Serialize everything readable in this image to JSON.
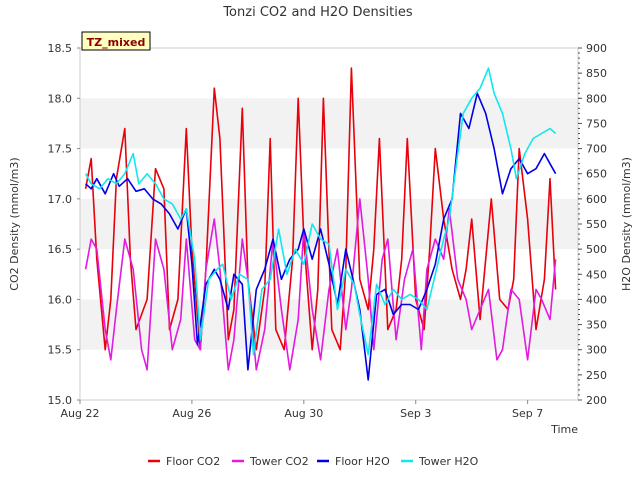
{
  "chart_data": {
    "type": "line",
    "title": "Tonzi CO2 and H2O Densities",
    "xlabel": "Time",
    "ylabel_left": "CO2 Density (mmol/m3)",
    "ylabel_right": "H2O Density (mmol/m3)",
    "site_label": "TZ_mixed",
    "x_ticks": [
      "Aug 22",
      "Aug 26",
      "Aug 30",
      "Sep 3",
      "Sep 7"
    ],
    "x_tick_days": [
      0,
      4,
      8,
      12,
      16
    ],
    "xlim": [
      0,
      17.8
    ],
    "ylim_left": [
      15.0,
      18.5
    ],
    "left_ticks": [
      "15.0",
      "15.5",
      "16.0",
      "16.5",
      "17.0",
      "17.5",
      "18.0",
      "18.5"
    ],
    "ylim_right": [
      200,
      900
    ],
    "right_ticks": [
      "200",
      "250",
      "300",
      "350",
      "400",
      "450",
      "500",
      "550",
      "600",
      "650",
      "700",
      "750",
      "800",
      "850",
      "900"
    ],
    "grid": "horizontal bands",
    "legend_position": "bottom",
    "series": [
      {
        "name": "Floor CO2",
        "axis": "left",
        "color": "#e8000b",
        "x": [
          0.2,
          0.4,
          0.6,
          0.9,
          1.1,
          1.3,
          1.6,
          1.8,
          2.0,
          2.4,
          2.7,
          3.0,
          3.2,
          3.5,
          3.8,
          4.0,
          4.3,
          4.5,
          4.8,
          5.0,
          5.3,
          5.5,
          5.8,
          6.0,
          6.3,
          6.6,
          6.8,
          7.0,
          7.3,
          7.6,
          7.8,
          8.0,
          8.3,
          8.5,
          8.7,
          9.0,
          9.3,
          9.5,
          9.7,
          10.0,
          10.3,
          10.5,
          10.7,
          11.0,
          11.3,
          11.5,
          11.7,
          12.0,
          12.3,
          12.5,
          12.7,
          13.0,
          13.3,
          13.6,
          13.8,
          14.0,
          14.3,
          14.5,
          14.7,
          15.0,
          15.3,
          15.5,
          15.7,
          16.0,
          16.3,
          16.6,
          16.8,
          17.0
        ],
        "values": [
          17.1,
          17.4,
          16.4,
          15.5,
          16.0,
          17.2,
          17.7,
          16.4,
          15.7,
          16.0,
          17.3,
          17.1,
          15.7,
          16.0,
          17.7,
          16.5,
          15.5,
          16.3,
          18.1,
          17.6,
          15.6,
          15.9,
          17.9,
          16.2,
          15.5,
          16.1,
          17.6,
          15.7,
          15.5,
          16.4,
          18.0,
          16.6,
          15.5,
          16.1,
          18.0,
          15.7,
          15.5,
          16.3,
          18.3,
          16.2,
          15.9,
          16.5,
          17.6,
          15.7,
          15.9,
          16.4,
          17.6,
          16.0,
          15.7,
          16.5,
          17.5,
          16.8,
          16.3,
          16.0,
          16.3,
          16.8,
          15.8,
          16.4,
          17.0,
          16.0,
          15.9,
          16.2,
          17.5,
          16.8,
          15.7,
          16.2,
          17.2,
          16.1
        ]
      },
      {
        "name": "Tower CO2",
        "axis": "left",
        "color": "#e31adf",
        "x": [
          0.2,
          0.4,
          0.6,
          0.9,
          1.1,
          1.3,
          1.6,
          1.9,
          2.2,
          2.4,
          2.7,
          3.0,
          3.3,
          3.6,
          3.8,
          4.1,
          4.3,
          4.5,
          4.8,
          5.0,
          5.3,
          5.5,
          5.8,
          6.0,
          6.3,
          6.6,
          6.9,
          7.2,
          7.5,
          7.8,
          8.0,
          8.3,
          8.6,
          8.9,
          9.2,
          9.5,
          9.7,
          10.0,
          10.3,
          10.5,
          10.8,
          11.0,
          11.3,
          11.6,
          11.9,
          12.2,
          12.4,
          12.7,
          13.0,
          13.2,
          13.5,
          13.8,
          14.0,
          14.3,
          14.6,
          14.9,
          15.1,
          15.4,
          15.7,
          16.0,
          16.3,
          16.5,
          16.8,
          17.0
        ],
        "values": [
          16.3,
          16.6,
          16.5,
          15.7,
          15.4,
          15.9,
          16.6,
          16.3,
          15.5,
          15.3,
          16.6,
          16.3,
          15.5,
          15.8,
          16.6,
          15.6,
          15.5,
          16.3,
          16.8,
          16.3,
          15.3,
          15.6,
          16.6,
          16.2,
          15.3,
          15.7,
          16.6,
          15.9,
          15.3,
          15.8,
          16.7,
          15.9,
          15.4,
          16.1,
          16.5,
          15.7,
          16.1,
          17.0,
          16.2,
          15.5,
          16.4,
          16.6,
          15.6,
          16.2,
          16.5,
          15.5,
          16.3,
          16.6,
          16.4,
          16.9,
          16.2,
          16.0,
          15.7,
          15.9,
          16.1,
          15.4,
          15.5,
          16.1,
          16.0,
          15.4,
          16.1,
          16.0,
          15.8,
          16.4
        ]
      },
      {
        "name": "Floor H2O",
        "axis": "right",
        "color": "#0000e6",
        "x": [
          0.2,
          0.4,
          0.6,
          0.9,
          1.2,
          1.4,
          1.7,
          2.0,
          2.3,
          2.6,
          2.9,
          3.2,
          3.5,
          3.8,
          4.0,
          4.2,
          4.5,
          4.8,
          5.0,
          5.3,
          5.5,
          5.8,
          6.0,
          6.3,
          6.6,
          6.9,
          7.2,
          7.5,
          7.8,
          8.0,
          8.3,
          8.6,
          8.9,
          9.2,
          9.5,
          9.8,
          10.0,
          10.3,
          10.6,
          10.9,
          11.2,
          11.5,
          11.8,
          12.1,
          12.4,
          12.7,
          13.0,
          13.3,
          13.6,
          13.9,
          14.2,
          14.5,
          14.8,
          15.1,
          15.4,
          15.7,
          16.0,
          16.3,
          16.6,
          16.8,
          17.0
        ],
        "values": [
          630,
          620,
          640,
          610,
          650,
          625,
          640,
          615,
          620,
          600,
          590,
          570,
          540,
          580,
          470,
          310,
          430,
          460,
          440,
          380,
          450,
          430,
          260,
          420,
          460,
          520,
          440,
          480,
          500,
          540,
          480,
          540,
          470,
          390,
          500,
          430,
          380,
          240,
          410,
          420,
          370,
          390,
          390,
          380,
          420,
          470,
          560,
          600,
          770,
          740,
          810,
          770,
          700,
          610,
          660,
          680,
          650,
          660,
          690,
          670,
          650
        ]
      },
      {
        "name": "Tower H2O",
        "axis": "right",
        "color": "#10e8ee",
        "x": [
          0.2,
          0.4,
          0.7,
          1.0,
          1.3,
          1.6,
          1.9,
          2.1,
          2.4,
          2.7,
          3.0,
          3.3,
          3.6,
          3.8,
          4.1,
          4.3,
          4.6,
          4.9,
          5.1,
          5.4,
          5.7,
          6.0,
          6.2,
          6.5,
          6.8,
          7.1,
          7.4,
          7.7,
          8.0,
          8.3,
          8.6,
          8.9,
          9.2,
          9.5,
          9.8,
          10.0,
          10.3,
          10.6,
          10.9,
          11.2,
          11.5,
          11.8,
          12.1,
          12.4,
          12.7,
          13.0,
          13.2,
          13.5,
          13.7,
          14.0,
          14.3,
          14.6,
          14.8,
          15.1,
          15.4,
          15.6,
          15.9,
          16.2,
          16.5,
          16.8,
          17.0
        ],
        "values": [
          650,
          630,
          620,
          640,
          630,
          650,
          690,
          630,
          650,
          630,
          600,
          590,
          560,
          580,
          480,
          320,
          440,
          460,
          470,
          400,
          450,
          440,
          290,
          420,
          440,
          540,
          450,
          500,
          470,
          550,
          520,
          510,
          380,
          460,
          430,
          370,
          290,
          430,
          390,
          420,
          400,
          410,
          400,
          380,
          450,
          520,
          560,
          690,
          770,
          800,
          820,
          860,
          810,
          770,
          700,
          640,
          690,
          720,
          730,
          740,
          730
        ]
      }
    ]
  }
}
